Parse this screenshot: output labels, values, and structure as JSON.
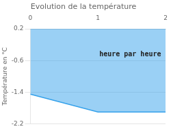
{
  "chart_data": {
    "type": "line",
    "title": "Evolution de la température",
    "ylabel": "Température en °C",
    "annotations": [
      {
        "text": "heure par heure",
        "x": 1.02,
        "y": -0.5
      }
    ],
    "x": [
      0,
      1,
      2
    ],
    "values": [
      -1.45,
      -1.9,
      -1.9
    ],
    "xlim": [
      0,
      2
    ],
    "xticks": [
      0,
      1,
      2
    ],
    "ylim": [
      -2.2,
      0.2
    ],
    "yticks": [
      0.2,
      -0.6,
      -1.4,
      -2.2
    ],
    "grid": "y"
  }
}
